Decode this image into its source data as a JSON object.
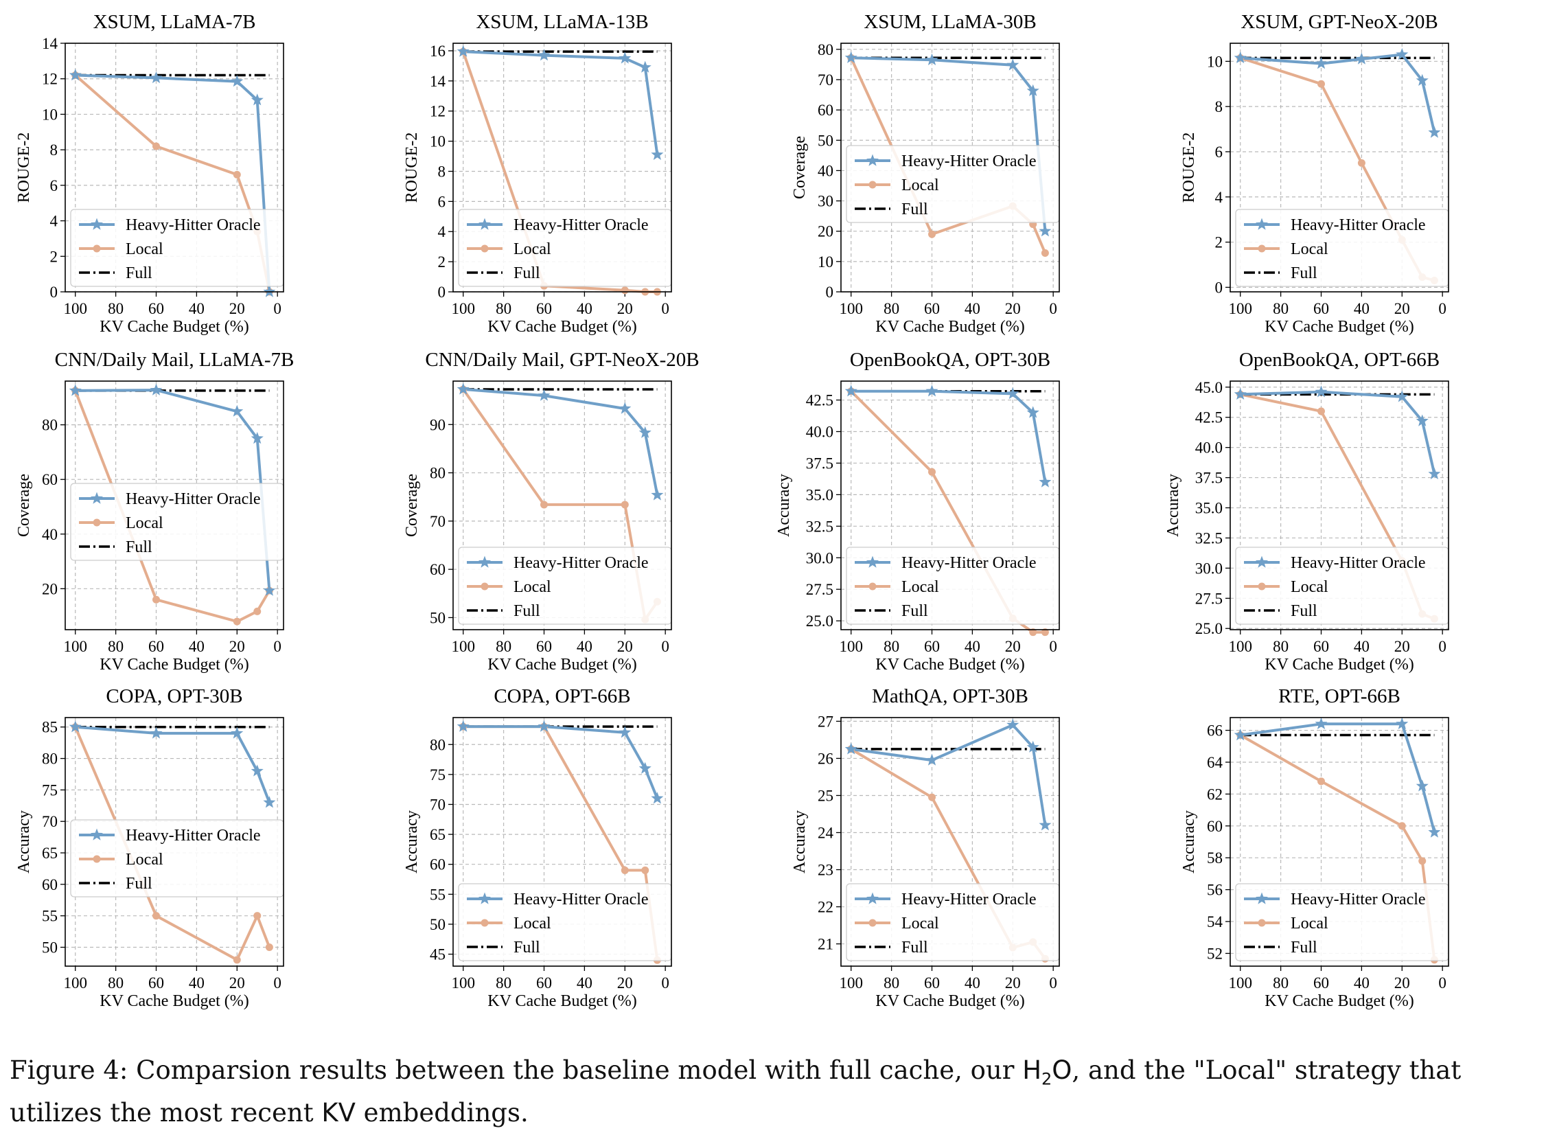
{
  "legend_labels": [
    "Heavy-Hitter Oracle",
    "Local",
    "Full"
  ],
  "colors": {
    "heavy": "#6f9fc8",
    "local": "#e4ad8e",
    "full": "#000000"
  },
  "caption": {
    "part1": "Figure 4: Comparsion results between the baseline model with full cache, our ",
    "h2o_a": "H",
    "h2o_sub": "2",
    "h2o_b": "O",
    "part2": ", and the \"Local\" strategy that utilizes the most recent ",
    "kv": "KV",
    "part3": " embeddings."
  },
  "chart_data": [
    {
      "type": "line",
      "title": "XSUM, LLaMA-7B",
      "xlabel": "KV Cache Budget (%)",
      "ylabel": "ROUGE-2",
      "xlim": [
        105,
        -3
      ],
      "ylim": [
        0,
        14
      ],
      "xticks": [
        100,
        80,
        60,
        40,
        20,
        0
      ],
      "yticks": [
        0,
        2,
        4,
        6,
        8,
        10,
        12,
        14
      ],
      "x": [
        100,
        60,
        20,
        10,
        4
      ],
      "series": [
        {
          "name": "Heavy-Hitter Oracle",
          "values": [
            12.2,
            12.05,
            11.85,
            10.8,
            0
          ]
        },
        {
          "name": "Local",
          "values": [
            12.2,
            8.2,
            6.6,
            3.4,
            0
          ]
        },
        {
          "name": "Full",
          "values": [
            12.2,
            12.2,
            12.2,
            12.2,
            12.2
          ]
        }
      ],
      "legend": "lower-left"
    },
    {
      "type": "line",
      "title": "XSUM, LLaMA-13B",
      "xlabel": "KV Cache Budget (%)",
      "ylabel": "ROUGE-2",
      "xlim": [
        105,
        -3
      ],
      "ylim": [
        0,
        16.5
      ],
      "xticks": [
        100,
        80,
        60,
        40,
        20,
        0
      ],
      "yticks": [
        0,
        2,
        4,
        6,
        8,
        10,
        12,
        14,
        16
      ],
      "x": [
        100,
        60,
        20,
        10,
        4
      ],
      "series": [
        {
          "name": "Heavy-Hitter Oracle",
          "values": [
            15.95,
            15.7,
            15.5,
            14.9,
            9.1
          ]
        },
        {
          "name": "Local",
          "values": [
            15.95,
            0.4,
            0.1,
            0.0,
            0.0
          ]
        },
        {
          "name": "Full",
          "values": [
            15.95,
            15.95,
            15.95,
            15.95,
            15.95
          ]
        }
      ],
      "legend": "lower-left"
    },
    {
      "type": "line",
      "title": "XSUM, LLaMA-30B",
      "xlabel": "KV Cache Budget (%)",
      "ylabel": "Coverage",
      "xlim": [
        105,
        -3
      ],
      "ylim": [
        0,
        82
      ],
      "xticks": [
        100,
        80,
        60,
        40,
        20,
        0
      ],
      "yticks": [
        0,
        10,
        20,
        30,
        40,
        50,
        60,
        70,
        80
      ],
      "x": [
        100,
        60,
        20,
        10,
        4
      ],
      "series": [
        {
          "name": "Heavy-Hitter Oracle",
          "values": [
            77.2,
            76.5,
            74.8,
            66.3,
            20.0
          ]
        },
        {
          "name": "Local",
          "values": [
            77.2,
            19.0,
            28.3,
            22.3,
            12.8
          ]
        },
        {
          "name": "Full",
          "values": [
            77.2,
            77.2,
            77.2,
            77.2,
            77.2
          ]
        }
      ],
      "legend": "center-left"
    },
    {
      "type": "line",
      "title": "XSUM, GPT-NeoX-20B",
      "xlabel": "KV Cache Budget (%)",
      "ylabel": "ROUGE-2",
      "xlim": [
        105,
        -3
      ],
      "ylim": [
        -0.2,
        10.8
      ],
      "xticks": [
        100,
        80,
        60,
        40,
        20,
        0
      ],
      "yticks": [
        0,
        2,
        4,
        6,
        8,
        10
      ],
      "x": [
        100,
        60,
        40,
        20,
        10,
        4
      ],
      "series": [
        {
          "name": "Heavy-Hitter Oracle",
          "values": [
            10.15,
            9.9,
            10.1,
            10.3,
            9.15,
            6.85
          ]
        },
        {
          "name": "Local",
          "values": [
            10.15,
            9.0,
            5.5,
            2.1,
            0.45,
            0.3
          ]
        },
        {
          "name": "Full",
          "values": [
            10.15,
            10.15,
            10.15,
            10.15,
            10.15,
            10.15
          ]
        }
      ],
      "legend": "lower-left"
    },
    {
      "type": "line",
      "title": "CNN/Daily Mail, LLaMA-7B",
      "xlabel": "KV Cache Budget (%)",
      "ylabel": "Coverage",
      "xlim": [
        105,
        -3
      ],
      "ylim": [
        5,
        96
      ],
      "xticks": [
        100,
        80,
        60,
        40,
        20,
        0
      ],
      "yticks": [
        20,
        40,
        60,
        80
      ],
      "x": [
        100,
        60,
        20,
        10,
        4
      ],
      "series": [
        {
          "name": "Heavy-Hitter Oracle",
          "values": [
            92.5,
            92.7,
            84.9,
            75.0,
            19.3
          ]
        },
        {
          "name": "Local",
          "values": [
            92.5,
            16.0,
            8.0,
            11.7,
            19.3
          ]
        },
        {
          "name": "Full",
          "values": [
            92.5,
            92.5,
            92.5,
            92.5,
            92.5
          ]
        }
      ],
      "legend": "center-left"
    },
    {
      "type": "line",
      "title": "CNN/Daily Mail, GPT-NeoX-20B",
      "xlabel": "KV Cache Budget (%)",
      "ylabel": "Coverage",
      "xlim": [
        105,
        -3
      ],
      "ylim": [
        47.5,
        99
      ],
      "xticks": [
        100,
        80,
        60,
        40,
        20,
        0
      ],
      "yticks": [
        50,
        60,
        70,
        80,
        90
      ],
      "x": [
        100,
        60,
        20,
        10,
        4
      ],
      "series": [
        {
          "name": "Heavy-Hitter Oracle",
          "values": [
            97.3,
            96.0,
            93.3,
            88.3,
            75.4
          ]
        },
        {
          "name": "Local",
          "values": [
            97.3,
            73.4,
            73.4,
            49.6,
            53.3
          ]
        },
        {
          "name": "Full",
          "values": [
            97.3,
            97.3,
            97.3,
            97.3,
            97.3
          ]
        }
      ],
      "legend": "lower-left"
    },
    {
      "type": "line",
      "title": "OpenBookQA, OPT-30B",
      "xlabel": "KV Cache Budget (%)",
      "ylabel": "Accuracy",
      "xlim": [
        105,
        -3
      ],
      "ylim": [
        24.3,
        44
      ],
      "xticks": [
        100,
        80,
        60,
        40,
        20,
        0
      ],
      "yticks": [
        25.0,
        27.5,
        30.0,
        32.5,
        35.0,
        37.5,
        40.0,
        42.5
      ],
      "yfmt": 1,
      "x": [
        100,
        60,
        20,
        10,
        4
      ],
      "series": [
        {
          "name": "Heavy-Hitter Oracle",
          "values": [
            43.2,
            43.2,
            43.0,
            41.5,
            36.0
          ]
        },
        {
          "name": "Local",
          "values": [
            43.2,
            36.8,
            25.2,
            24.1,
            24.1
          ]
        },
        {
          "name": "Full",
          "values": [
            43.2,
            43.2,
            43.2,
            43.2,
            43.2
          ]
        }
      ],
      "legend": "lower-left"
    },
    {
      "type": "line",
      "title": "OpenBookQA, OPT-66B",
      "xlabel": "KV Cache Budget (%)",
      "ylabel": "Accuracy",
      "xlim": [
        105,
        -3
      ],
      "ylim": [
        24.9,
        45.5
      ],
      "xticks": [
        100,
        80,
        60,
        40,
        20,
        0
      ],
      "yticks": [
        25.0,
        27.5,
        30.0,
        32.5,
        35.0,
        37.5,
        40.0,
        42.5,
        45.0
      ],
      "yfmt": 1,
      "x": [
        100,
        60,
        20,
        10,
        4
      ],
      "series": [
        {
          "name": "Heavy-Hitter Oracle",
          "values": [
            44.4,
            44.6,
            44.2,
            42.2,
            37.8
          ]
        },
        {
          "name": "Local",
          "values": [
            44.4,
            43.0,
            30.6,
            26.2,
            25.8
          ]
        },
        {
          "name": "Full",
          "values": [
            44.4,
            44.4,
            44.4,
            44.4,
            44.4
          ]
        }
      ],
      "legend": "lower-left"
    },
    {
      "type": "line",
      "title": "COPA, OPT-30B",
      "xlabel": "KV Cache Budget (%)",
      "ylabel": "Accuracy",
      "xlim": [
        105,
        -3
      ],
      "ylim": [
        47,
        86.5
      ],
      "xticks": [
        100,
        80,
        60,
        40,
        20,
        0
      ],
      "yticks": [
        50,
        55,
        60,
        65,
        70,
        75,
        80,
        85
      ],
      "x": [
        100,
        60,
        20,
        10,
        4
      ],
      "series": [
        {
          "name": "Heavy-Hitter Oracle",
          "values": [
            85,
            84,
            84,
            78,
            73
          ]
        },
        {
          "name": "Local",
          "values": [
            85,
            55,
            48,
            55,
            50
          ]
        },
        {
          "name": "Full",
          "values": [
            85,
            85,
            85,
            85,
            85
          ]
        }
      ],
      "legend": "center-left"
    },
    {
      "type": "line",
      "title": "COPA, OPT-66B",
      "xlabel": "KV Cache Budget (%)",
      "ylabel": "Accuracy",
      "xlim": [
        105,
        -3
      ],
      "ylim": [
        43,
        84.5
      ],
      "xticks": [
        100,
        80,
        60,
        40,
        20,
        0
      ],
      "yticks": [
        45,
        50,
        55,
        60,
        65,
        70,
        75,
        80
      ],
      "x": [
        100,
        60,
        20,
        10,
        4
      ],
      "series": [
        {
          "name": "Heavy-Hitter Oracle",
          "values": [
            83,
            83,
            82,
            76,
            71
          ]
        },
        {
          "name": "Local",
          "values": [
            83,
            83,
            59,
            59,
            44
          ]
        },
        {
          "name": "Full",
          "values": [
            83,
            83,
            83,
            83,
            83
          ]
        }
      ],
      "legend": "lower-left"
    },
    {
      "type": "line",
      "title": "MathQA, OPT-30B",
      "xlabel": "KV Cache Budget (%)",
      "ylabel": "Accuracy",
      "xlim": [
        105,
        -3
      ],
      "ylim": [
        20.4,
        27.1
      ],
      "xticks": [
        100,
        80,
        60,
        40,
        20,
        0
      ],
      "yticks": [
        21,
        22,
        23,
        24,
        25,
        26,
        27
      ],
      "x": [
        100,
        60,
        20,
        10,
        4
      ],
      "series": [
        {
          "name": "Heavy-Hitter Oracle",
          "values": [
            26.25,
            25.95,
            26.9,
            26.3,
            24.2
          ]
        },
        {
          "name": "Local",
          "values": [
            26.25,
            24.95,
            20.9,
            21.05,
            20.6
          ]
        },
        {
          "name": "Full",
          "values": [
            26.25,
            26.25,
            26.25,
            26.25,
            26.25
          ]
        }
      ],
      "legend": "lower-left"
    },
    {
      "type": "line",
      "title": "RTE, OPT-66B",
      "xlabel": "KV Cache Budget (%)",
      "ylabel": "Accuracy",
      "xlim": [
        105,
        -3
      ],
      "ylim": [
        51.2,
        66.8
      ],
      "xticks": [
        100,
        80,
        60,
        40,
        20,
        0
      ],
      "yticks": [
        52,
        54,
        56,
        58,
        60,
        62,
        64,
        66
      ],
      "x": [
        100,
        60,
        20,
        10,
        4
      ],
      "series": [
        {
          "name": "Heavy-Hitter Oracle",
          "values": [
            65.7,
            66.4,
            66.4,
            62.5,
            59.6
          ]
        },
        {
          "name": "Local",
          "values": [
            65.7,
            62.8,
            60.0,
            57.8,
            51.6
          ]
        },
        {
          "name": "Full",
          "values": [
            65.7,
            65.7,
            65.7,
            65.7,
            65.7
          ]
        }
      ],
      "legend": "lower-left"
    }
  ]
}
